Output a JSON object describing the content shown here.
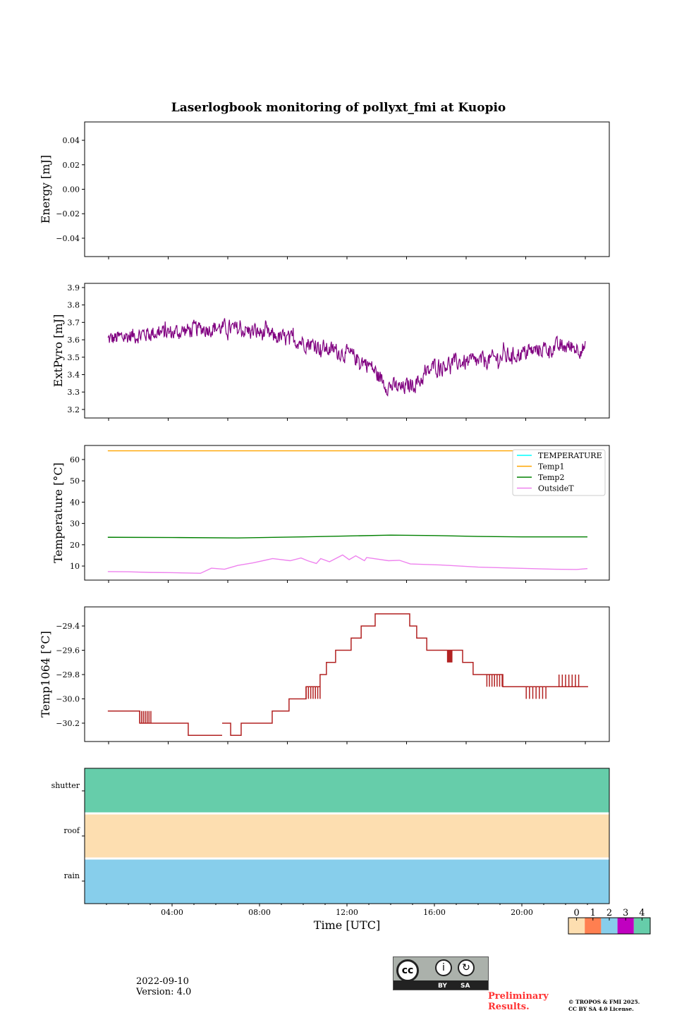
{
  "footer": {
    "date": "2022-09-10",
    "version": "Version: 4.0",
    "preliminary_line1": "Preliminary",
    "preliminary_line2": "Results.",
    "copyright_line1": "© TROPOS & FMI 2025.",
    "copyright_line2": "CC BY SA 4.0 License.",
    "license_badge": {
      "cc": "cc",
      "by": "BY",
      "sa": "SA"
    }
  },
  "chart_data": [
    {
      "type": "line",
      "title": "Laserlogbook monitoring of pollyxt_fmi at Kuopio",
      "ylabel": "Energy [mJ]",
      "ylim": [
        -0.055,
        0.055
      ],
      "yticks": [
        0.04,
        0.02,
        0.0,
        -0.02,
        -0.04
      ],
      "ytick_labels": [
        "0.04",
        "0.02",
        "0.00",
        "−0.02",
        "−0.04"
      ],
      "series": []
    },
    {
      "type": "line",
      "ylabel": "ExtPyro [mJ]",
      "ylim": [
        3.151,
        3.924
      ],
      "yticks": [
        3.9,
        3.8,
        3.7,
        3.6,
        3.5,
        3.4,
        3.3,
        3.2
      ],
      "ytick_labels": [
        "3.9",
        "3.8",
        "3.7",
        "3.6",
        "3.5",
        "3.4",
        "3.3",
        "3.2"
      ],
      "color": "#800080",
      "x_unit": "hours UTC",
      "trend": [
        [
          1.06,
          3.6
        ],
        [
          2,
          3.62
        ],
        [
          3,
          3.64
        ],
        [
          4,
          3.64
        ],
        [
          5,
          3.66
        ],
        [
          6,
          3.67
        ],
        [
          7,
          3.66
        ],
        [
          8,
          3.64
        ],
        [
          9,
          3.61
        ],
        [
          10,
          3.59
        ],
        [
          11,
          3.55
        ],
        [
          12,
          3.52
        ],
        [
          13,
          3.46
        ],
        [
          13.8,
          3.34
        ],
        [
          14.5,
          3.32
        ],
        [
          15.3,
          3.36
        ],
        [
          16,
          3.45
        ],
        [
          17,
          3.47
        ],
        [
          18,
          3.47
        ],
        [
          19,
          3.5
        ],
        [
          20,
          3.52
        ],
        [
          21,
          3.55
        ],
        [
          22,
          3.56
        ],
        [
          22.9,
          3.55
        ]
      ],
      "noise_amplitude": 0.07,
      "n_points": 900
    },
    {
      "type": "line",
      "ylabel": "Temperature [°C]",
      "ylim": [
        3.4,
        66.6
      ],
      "yticks": [
        60,
        50,
        40,
        30,
        20,
        10
      ],
      "ytick_labels": [
        "60",
        "50",
        "40",
        "30",
        "20",
        "10"
      ],
      "legend_position": "top-right",
      "series": [
        {
          "name": "TEMPERATURE",
          "color": "#00ffff",
          "points": []
        },
        {
          "name": "Temp1",
          "color": "#ffa500",
          "points": [
            [
              1.06,
              64.1
            ],
            [
              23.0,
              64.1
            ]
          ]
        },
        {
          "name": "Temp2",
          "color": "#008000",
          "points": [
            [
              1.06,
              23.5
            ],
            [
              4,
              23.4
            ],
            [
              7,
              23.2
            ],
            [
              10,
              23.7
            ],
            [
              12,
              24.1
            ],
            [
              14,
              24.5
            ],
            [
              16,
              24.3
            ],
            [
              18,
              23.9
            ],
            [
              20,
              23.7
            ],
            [
              23.0,
              23.7
            ]
          ]
        },
        {
          "name": "OutsideT",
          "color": "#ee82ee",
          "points": [
            [
              1.06,
              7.4
            ],
            [
              2,
              7.3
            ],
            [
              3,
              7.0
            ],
            [
              4,
              6.9
            ],
            [
              5.3,
              6.6
            ],
            [
              5.8,
              9.0
            ],
            [
              6.4,
              8.5
            ],
            [
              7.0,
              10.3
            ],
            [
              7.7,
              11.5
            ],
            [
              8.6,
              13.5
            ],
            [
              9.4,
              12.5
            ],
            [
              9.9,
              13.8
            ],
            [
              10.2,
              12.5
            ],
            [
              10.6,
              11.2
            ],
            [
              10.8,
              13.5
            ],
            [
              11.2,
              12.0
            ],
            [
              11.8,
              15.2
            ],
            [
              12.1,
              13.0
            ],
            [
              12.4,
              14.8
            ],
            [
              12.8,
              12.5
            ],
            [
              12.9,
              14.0
            ],
            [
              13.9,
              12.5
            ],
            [
              14.4,
              12.7
            ],
            [
              14.9,
              11.0
            ],
            [
              16.3,
              10.5
            ],
            [
              18.0,
              9.5
            ],
            [
              19.7,
              9.0
            ],
            [
              21.5,
              8.5
            ],
            [
              22.5,
              8.4
            ],
            [
              23.0,
              8.8
            ]
          ]
        }
      ]
    },
    {
      "type": "line",
      "ylabel": "Temp1064 [°C]",
      "ylim": [
        -30.351,
        -29.243
      ],
      "yticks": [
        -29.4,
        -29.6,
        -29.8,
        -30.0,
        -30.2
      ],
      "ytick_labels": [
        "−29.4",
        "−29.6",
        "−29.8",
        "−30.0",
        "−30.2"
      ],
      "color": "#b22222",
      "steps": [
        [
          1.06,
          -30.1
        ],
        [
          2.52,
          -30.2
        ],
        [
          4.74,
          -30.3
        ],
        [
          6.29,
          null
        ],
        [
          6.29,
          -30.2
        ],
        [
          6.68,
          -30.3
        ],
        [
          7.16,
          -30.2
        ],
        [
          8.58,
          -30.1
        ],
        [
          9.35,
          -30.0
        ],
        [
          10.13,
          -29.9
        ],
        [
          10.77,
          -29.8
        ],
        [
          11.06,
          -29.7
        ],
        [
          11.48,
          -29.6
        ],
        [
          12.19,
          -29.5
        ],
        [
          12.65,
          -29.4
        ],
        [
          13.29,
          -29.3
        ],
        [
          14.87,
          -29.4
        ],
        [
          15.19,
          -29.5
        ],
        [
          15.65,
          -29.6
        ],
        [
          17.29,
          -29.7
        ],
        [
          17.77,
          -29.8
        ],
        [
          19.13,
          -29.9
        ],
        [
          23.03,
          -29.9
        ]
      ],
      "flicker": [
        [
          2.52,
          3.03,
          -30.1
        ],
        [
          10.13,
          10.77,
          -30.0
        ],
        [
          16.6,
          16.8,
          -29.7
        ],
        [
          18.4,
          19.1,
          -29.9
        ],
        [
          20.2,
          21.1,
          -30.0
        ],
        [
          21.7,
          22.6,
          -29.8
        ]
      ]
    },
    {
      "type": "heatmap",
      "xlabel": "Time [UTC]",
      "xlim": [
        0,
        24
      ],
      "xticks": [
        4,
        8,
        12,
        16,
        20
      ],
      "xtick_labels": [
        "04:00",
        "08:00",
        "12:00",
        "16:00",
        "20:00"
      ],
      "rows": [
        {
          "name": "shutter",
          "value": 4
        },
        {
          "name": "roof",
          "value": 0
        },
        {
          "name": "rain",
          "value": 2
        }
      ],
      "colorbar": {
        "labels": [
          "0",
          "1",
          "2",
          "3",
          "4"
        ],
        "colors": [
          "#fddeb0",
          "#ff7f50",
          "#87ceeb",
          "#c000c0",
          "#66cdaa"
        ]
      }
    }
  ]
}
